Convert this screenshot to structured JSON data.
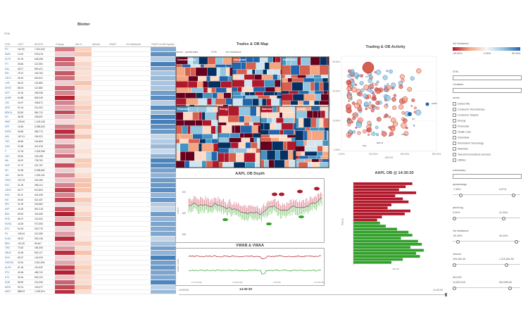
{
  "blotter": {
    "title": "Blotter",
    "filter_label": "SYM",
    "columns": [
      "SYM",
      "LAST",
      "ADCHG",
      "Change",
      "abs %",
      "Spread",
      "VWAP",
      "Vol Imbalance",
      "VWAP vs Mid Spread"
    ],
    "rows": [
      {
        "sym": "PG",
        "c1": "112.90",
        "c2": "7,521,542"
      },
      {
        "sym": "NWS",
        "c1": "13.22",
        "c2": "375,078"
      },
      {
        "sym": "ZLTR",
        "c1": "92.76",
        "c2": "645,258"
      },
      {
        "sym": "FTI",
        "c1": "35.83",
        "c2": "112,554"
      },
      {
        "sym": "DAL",
        "c1": "48.17",
        "c2": "893,421"
      },
      {
        "sym": "RAI",
        "c1": "78.12",
        "c2": "443,762"
      },
      {
        "sym": "LRCX",
        "c1": "28.16",
        "c2": "602,521"
      },
      {
        "sym": "LIFE",
        "c1": "56.22",
        "c2": "102,860"
      },
      {
        "sym": "MTEX",
        "c1": "88.04",
        "c2": "112,882"
      },
      {
        "sym": "HOT",
        "c1": "42.16",
        "c2": "256,338"
      },
      {
        "sym": "ADBE",
        "c1": "64.88",
        "c2": "805,245"
      },
      {
        "sym": "GIS",
        "c1": "44.07",
        "c2": "436,871"
      },
      {
        "sym": "ARG",
        "c1": "91.04",
        "c2": "211,003"
      },
      {
        "sym": "BRK.B",
        "c1": "83.50",
        "c2": "564,712"
      },
      {
        "sym": "HD",
        "c1": "48.05",
        "c2": "208,557"
      },
      {
        "sym": "WMT",
        "c1": "239.50",
        "c2": "1,103,245"
      },
      {
        "sym": "HST",
        "c1": "15.84",
        "c2": "6,955,843"
      },
      {
        "sym": "ESRX",
        "c1": "48.58",
        "c2": "385,774"
      },
      {
        "sym": "MSI",
        "c1": "167.41",
        "c2": "154,321"
      },
      {
        "sym": "TDC",
        "c1": "46.60",
        "c2": "244,853"
      },
      {
        "sym": "CAG",
        "c1": "22.85",
        "c2": "312,478"
      },
      {
        "sym": "F",
        "c1": "12.78",
        "c2": "2,302,908"
      },
      {
        "sym": "LNC",
        "c1": "26.81",
        "c2": "443,158"
      },
      {
        "sym": "MA",
        "c1": "45.22",
        "c2": "739,781"
      },
      {
        "sym": "ADP",
        "c1": "47.27",
        "c2": "221,787"
      },
      {
        "sym": "WY",
        "c1": "20.28",
        "c2": "5,095,862"
      },
      {
        "sym": "JNJ",
        "c1": "65.12",
        "c2": "1,302,441"
      },
      {
        "sym": "ORLY",
        "c1": "107.23",
        "c2": "115,265"
      },
      {
        "sym": "EXC",
        "c1": "41.45",
        "c2": "356,112"
      },
      {
        "sym": "LRDX",
        "c1": "36.77",
        "c2": "612,804"
      },
      {
        "sym": "KSS",
        "c1": "52.11",
        "c2": "402,339"
      },
      {
        "sym": "MO",
        "c1": "28.40",
        "c2": "621,457"
      },
      {
        "sym": "DRI",
        "c1": "41.92",
        "c2": "204,662"
      },
      {
        "sym": "AVP",
        "c1": "18.25",
        "c2": "557,218"
      },
      {
        "sym": "BAX",
        "c1": "69.62",
        "c2": "401,563"
      },
      {
        "sym": "ROK",
        "c1": "85.07",
        "c2": "113,902"
      },
      {
        "sym": "NVDA",
        "c1": "16.28",
        "c2": "972,053"
      },
      {
        "sym": "BTU",
        "c1": "54.33",
        "c2": "318,775"
      },
      {
        "sym": "PX",
        "c1": "109.44",
        "c2": "212,083"
      },
      {
        "sym": "KLAC",
        "c1": "48.19",
        "c2": "260,145"
      },
      {
        "sym": "BEN",
        "c1": "121.30",
        "c2": "95,447"
      },
      {
        "sym": "TWC",
        "c1": "73.62",
        "c2": "184,306"
      },
      {
        "sym": "SBUX",
        "c1": "42.55",
        "c2": "802,117"
      },
      {
        "sym": "DOV",
        "c1": "58.37",
        "c2": "140,229"
      },
      {
        "sym": "CMCSA",
        "c1": "24.91",
        "c2": "2,811,504"
      },
      {
        "sym": "ALXN",
        "c1": "91.45",
        "c2": "120,332"
      },
      {
        "sym": "DTV",
        "c1": "49.06",
        "c2": "455,720"
      },
      {
        "sym": "STX",
        "c1": "30.44",
        "c2": "602,119"
      },
      {
        "sym": "EQR",
        "c1": "58.90",
        "c2": "214,006"
      },
      {
        "sym": "WFM",
        "c1": "93.14",
        "c2": "103,477"
      },
      {
        "sym": "AAPL",
        "c1": "588.23",
        "c2": "1,220,914"
      }
    ]
  },
  "treemap": {
    "title": "Trades & OB Map",
    "toolbar": [
      "sector · quicktrades",
      "SYM",
      "Vol Imbalance"
    ],
    "sectors": [
      "Consumer Disc.",
      "Industrials",
      "Health Care",
      "Financials",
      "Energy",
      "Materials",
      "Utilities",
      "Telecom"
    ]
  },
  "scatter": {
    "title": "Trading & OB Activity",
    "ylabel": "Vol Imbalance",
    "xlabel": "ADCHG",
    "yticks": [
      "30.00%",
      "20.00%",
      "10.00%",
      "0.00%"
    ],
    "xticks": [
      "0.00%",
      "100.00%",
      "200.00%",
      "300.00%"
    ],
    "labels": [
      "PG",
      "ESRX",
      "WY",
      "MSI",
      "BRK.B",
      "WMT"
    ]
  },
  "depth": {
    "title": "AAPL OB Depth",
    "ylabel": "PRICE",
    "yticks": [
      "590",
      "589",
      "588"
    ]
  },
  "vwap": {
    "title": "VWAB & VWAA",
    "ylabel": "VWAB / VWAA",
    "xticks": [
      "1:07:00 PM",
      "1:38:00 PM",
      "2:00 PM",
      "1:07:00 PM"
    ]
  },
  "timeline": {
    "start": "14:00:00",
    "current": "14:30:30",
    "end": "14:30:30"
  },
  "bars": {
    "title": "AAPL OB @ 14:30:30",
    "ylabel": "PRICE",
    "xlabel": "VALUE",
    "series": [
      {
        "side": "ask",
        "values": [
          62,
          55,
          48,
          66,
          44,
          52,
          58,
          40,
          36,
          60,
          54,
          30,
          25
        ]
      },
      {
        "side": "bid",
        "values": [
          28,
          34,
          46,
          58,
          62,
          50,
          68,
          72,
          60,
          74,
          66,
          70,
          52,
          40
        ]
      }
    ]
  },
  "filters": {
    "vol_imbalance": {
      "label": "Vol Imbalance",
      "ticks": [
        "-50.00%",
        "0.00%",
        "50.00%"
      ]
    },
    "sym": {
      "label": "SYM"
    },
    "container": {
      "label": "Container"
    },
    "sector": {
      "label": "sector",
      "items": [
        "(Select All)",
        "Consumer Discretionary",
        "Consumer Staples",
        "Energy",
        "Financials",
        "Health Care",
        "Industrials",
        "Information Technology",
        "Materials",
        "Telecommunications Services",
        "Utilities"
      ]
    },
    "subindustry": {
      "label": "subindustry"
    },
    "sliders": [
      {
        "label": "quickchange",
        "lo": "-7.28%",
        "hi": "6.57%",
        "level_lo": 0.1,
        "level_hi": 0.9
      },
      {
        "label": "abs%chg",
        "lo": "0.00%",
        "hi": "41.33%",
        "level_lo": 0.0,
        "level_hi": 0.75
      },
      {
        "label": "Vol Imbalance",
        "lo": "-92.28%",
        "hi": "99.44%",
        "level_lo": 0.05,
        "level_hi": 0.95
      },
      {
        "label": "Volume",
        "lo": "193,263.46",
        "hi": "1,115,081.80",
        "level_lo": 0.0,
        "level_hi": 0.8
      },
      {
        "label": "ADCHG",
        "lo": "10,829,315",
        "hi": "843,085.80",
        "level_lo": 0.0,
        "level_hi": 0.85
      }
    ]
  },
  "colors": {
    "red": "#b2182b",
    "blue": "#2166ac",
    "green": "#33a02c"
  }
}
